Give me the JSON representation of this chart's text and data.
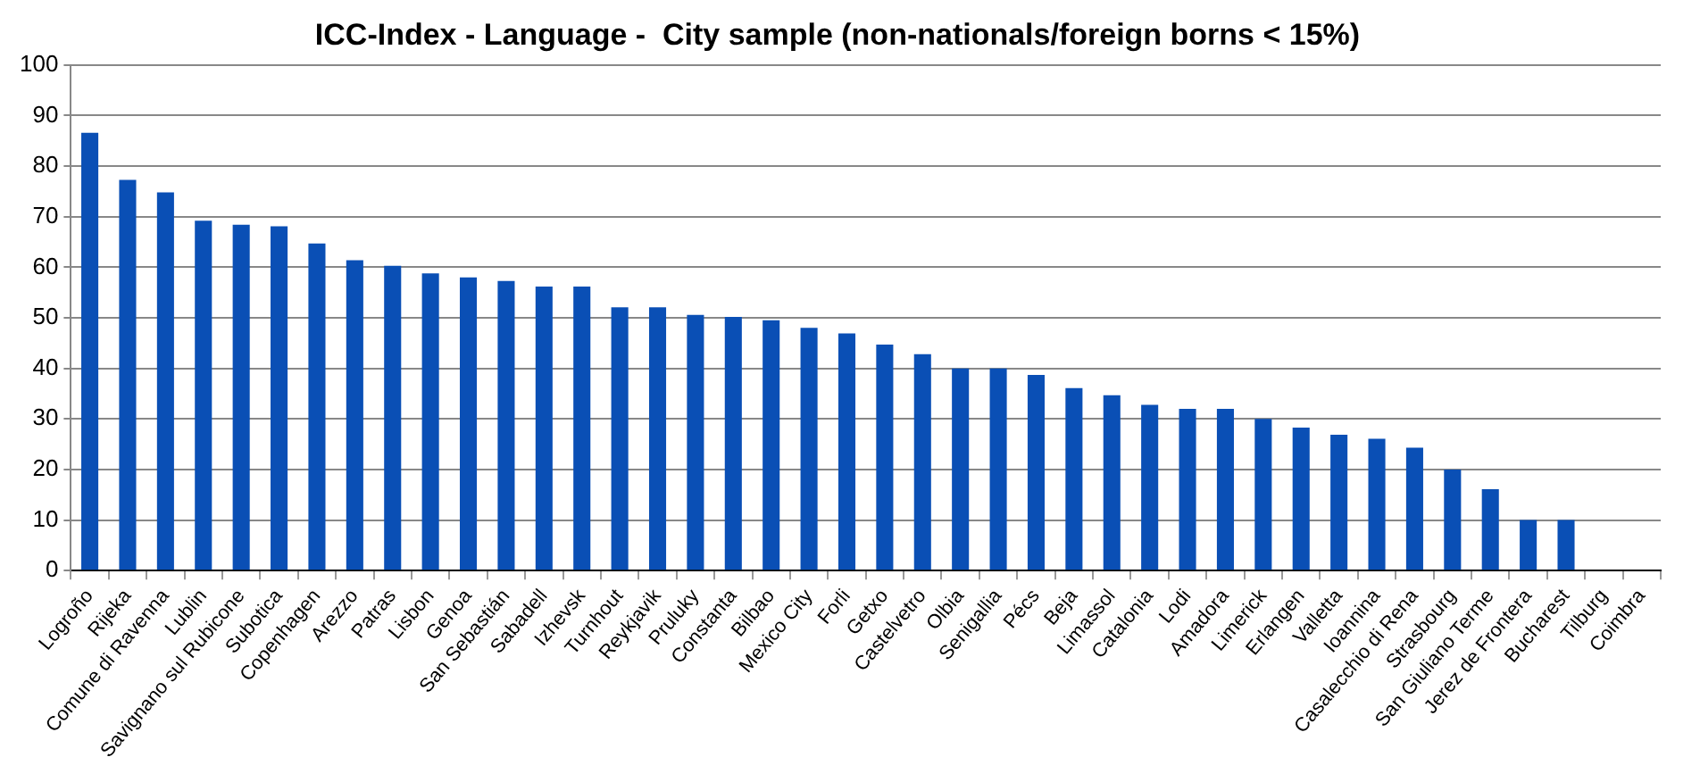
{
  "chart_data": {
    "type": "bar",
    "title": "ICC-Index - Language -  City sample (non-nationals/foreign borns < 15%)",
    "categories": [
      "Logroño",
      "Rijeka",
      "Comune di Ravenna",
      "Lublin",
      "Savignano sul Rubicone",
      "Subotica",
      "Copenhagen",
      "Arezzo",
      "Patras",
      "Lisbon",
      "Genoa",
      "San Sebastián",
      "Sabadell",
      "Izhevsk",
      "Turnhout",
      "Reykjavik",
      "Pruluky",
      "Constanta",
      "Bilbao",
      "Mexico City",
      "Forli",
      "Getxo",
      "Castelvetro",
      "Olbia",
      "Senigallia",
      "Pécs",
      "Beja",
      "Limassol",
      "Catalonia",
      "Lodi",
      "Amadora",
      "Limerick",
      "Erlangen",
      "Valletta",
      "Ioannina",
      "Casalecchio di Rena",
      "Strasbourg",
      "San Giuliano Terme",
      "Jerez de Frontera",
      "Bucharest",
      "Tilburg",
      "Coimbra"
    ],
    "values": [
      86.6,
      77.3,
      74.8,
      69.2,
      68.4,
      68.1,
      64.7,
      61.4,
      60.3,
      58.8,
      58,
      57.3,
      56.2,
      56.2,
      52.1,
      52.1,
      50.6,
      50.2,
      49.5,
      48,
      46.9,
      44.7,
      42.8,
      40,
      40,
      38.7,
      36.1,
      34.7,
      32.8,
      32,
      32,
      30,
      28.3,
      26.9,
      26.1,
      24.3,
      20,
      16.1,
      10,
      10,
      0,
      0
    ],
    "color": "#0a4fb5",
    "ylim": [
      0,
      100
    ],
    "yticks": [
      0,
      10,
      20,
      30,
      40,
      50,
      60,
      70,
      80,
      90,
      100
    ],
    "grid": "y",
    "legend": false
  }
}
